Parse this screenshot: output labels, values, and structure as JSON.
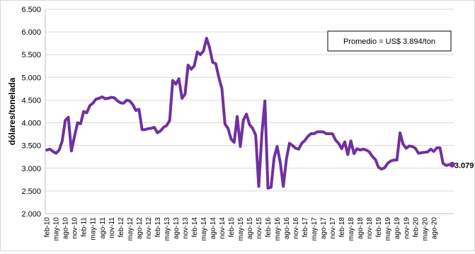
{
  "chart_data": {
    "type": "line",
    "ylabel": "dólares/tonelada",
    "ylim": [
      2000,
      6500
    ],
    "yticks": [
      2000,
      2500,
      3000,
      3500,
      4000,
      4500,
      5000,
      5500,
      6000,
      6500
    ],
    "ytick_labels": [
      "2.000",
      "2.500",
      "3.000",
      "3.500",
      "4.000",
      "4.500",
      "5.000",
      "5.500",
      "6.000",
      "6.500"
    ],
    "x_tick_labels": [
      "feb-10",
      "may-10",
      "ago-10",
      "nov-10",
      "feb-11",
      "may-11",
      "ago-11",
      "nov-11",
      "feb-12",
      "may-12",
      "ago-12",
      "nov-12",
      "feb-13",
      "may-13",
      "ago-13",
      "nov-13",
      "feb-14",
      "may-14",
      "ago-14",
      "nov-14",
      "feb-15",
      "may-15",
      "ago-15",
      "nov-15",
      "feb-16",
      "may-16",
      "ago-16",
      "nov-16",
      "feb-17",
      "may-17",
      "ago-17",
      "nov-17",
      "feb-18",
      "may-18",
      "ago-18",
      "nov-18",
      "feb-19",
      "may-19",
      "ago-19",
      "nov-19",
      "feb-20",
      "may-20",
      "ago-20"
    ],
    "series": [
      {
        "name": "",
        "color": "#7030a0",
        "values": [
          3400,
          3420,
          3370,
          3330,
          3400,
          3600,
          4050,
          4120,
          3380,
          3700,
          4000,
          3980,
          4250,
          4220,
          4380,
          4430,
          4520,
          4540,
          4570,
          4530,
          4540,
          4560,
          4550,
          4480,
          4440,
          4430,
          4500,
          4480,
          4400,
          4270,
          4300,
          3850,
          3850,
          3870,
          3880,
          3900,
          3780,
          3820,
          3900,
          3940,
          4050,
          4930,
          4850,
          4970,
          4540,
          4630,
          5270,
          5180,
          5250,
          5560,
          5500,
          5580,
          5860,
          5650,
          5330,
          5300,
          5000,
          4750,
          3970,
          3880,
          3640,
          3570,
          4140,
          3480,
          4060,
          4190,
          3960,
          3880,
          3730,
          2600,
          3750,
          4480,
          2560,
          2580,
          3230,
          3480,
          3130,
          2600,
          3200,
          3550,
          3500,
          3440,
          3420,
          3550,
          3610,
          3700,
          3760,
          3760,
          3800,
          3800,
          3800,
          3760,
          3760,
          3760,
          3620,
          3550,
          3430,
          3580,
          3300,
          3600,
          3320,
          3430,
          3400,
          3420,
          3400,
          3360,
          3260,
          3190,
          3020,
          2980,
          3010,
          3110,
          3160,
          3180,
          3180,
          3780,
          3530,
          3440,
          3490,
          3480,
          3440,
          3330,
          3340,
          3350,
          3360,
          3420,
          3370,
          3450,
          3450,
          3110,
          3060,
          3080,
          3079
        ]
      }
    ],
    "end_label": "3.079",
    "annotation": "Promedio = US$ 3.894/ton",
    "grid": true,
    "legend": "none"
  }
}
